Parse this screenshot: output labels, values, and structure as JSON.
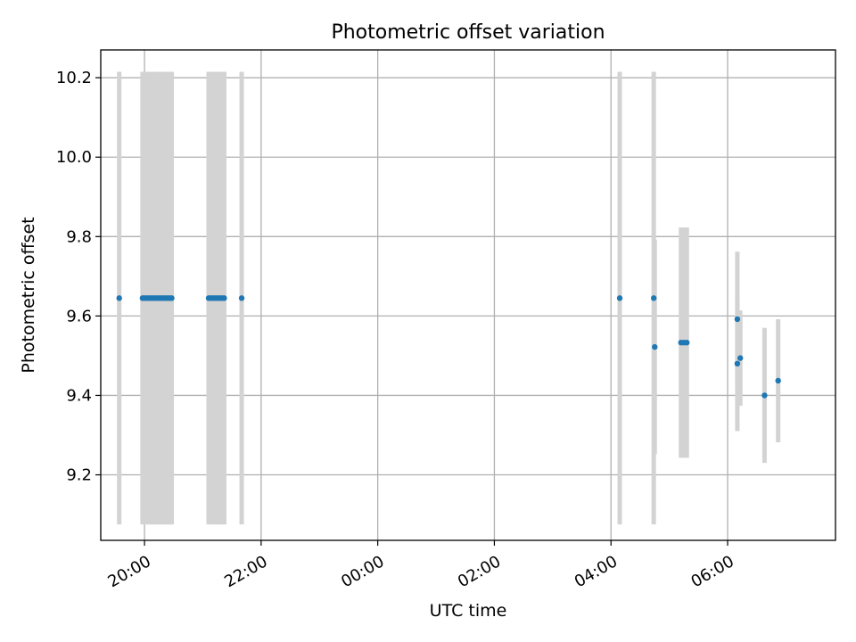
{
  "chart_data": {
    "type": "scatter",
    "title": "Photometric offset variation",
    "xlabel": "UTC time",
    "ylabel": "Photometric offset",
    "x_start": "19:00",
    "x_end": "07:40",
    "xlim": [
      "19:15",
      "07:51"
    ],
    "ylim": [
      9.035,
      10.27
    ],
    "x_ticks": [
      "20:00",
      "22:00",
      "00:00",
      "02:00",
      "04:00",
      "06:00"
    ],
    "y_ticks": [
      9.2,
      9.4,
      9.6,
      9.8,
      10.0,
      10.2
    ],
    "y_tick_labels": [
      "9.2",
      "9.4",
      "9.6",
      "9.8",
      "10.0",
      "10.2"
    ],
    "grid": true,
    "marker_color": "#1f77b4",
    "errorbar_color": "#d3d3d3",
    "points": [
      {
        "x": "19:34",
        "y": 9.645,
        "err": 0.57
      },
      {
        "x": "19:58",
        "y": 9.645,
        "err": 0.57
      },
      {
        "x": "20:00",
        "y": 9.645,
        "err": 0.57
      },
      {
        "x": "20:02",
        "y": 9.645,
        "err": 0.57
      },
      {
        "x": "20:04",
        "y": 9.645,
        "err": 0.57
      },
      {
        "x": "20:06",
        "y": 9.645,
        "err": 0.57
      },
      {
        "x": "20:08",
        "y": 9.645,
        "err": 0.57
      },
      {
        "x": "20:10",
        "y": 9.645,
        "err": 0.57
      },
      {
        "x": "20:12",
        "y": 9.645,
        "err": 0.57
      },
      {
        "x": "20:14",
        "y": 9.645,
        "err": 0.57
      },
      {
        "x": "20:16",
        "y": 9.645,
        "err": 0.57
      },
      {
        "x": "20:18",
        "y": 9.645,
        "err": 0.57
      },
      {
        "x": "20:20",
        "y": 9.645,
        "err": 0.57
      },
      {
        "x": "20:22",
        "y": 9.645,
        "err": 0.57
      },
      {
        "x": "20:24",
        "y": 9.645,
        "err": 0.57
      },
      {
        "x": "20:26",
        "y": 9.645,
        "err": 0.57
      },
      {
        "x": "20:28",
        "y": 9.645,
        "err": 0.57
      },
      {
        "x": "21:06",
        "y": 9.645,
        "err": 0.57
      },
      {
        "x": "21:08",
        "y": 9.645,
        "err": 0.57
      },
      {
        "x": "21:10",
        "y": 9.645,
        "err": 0.57
      },
      {
        "x": "21:12",
        "y": 9.645,
        "err": 0.57
      },
      {
        "x": "21:14",
        "y": 9.645,
        "err": 0.57
      },
      {
        "x": "21:16",
        "y": 9.645,
        "err": 0.57
      },
      {
        "x": "21:18",
        "y": 9.645,
        "err": 0.57
      },
      {
        "x": "21:20",
        "y": 9.645,
        "err": 0.57
      },
      {
        "x": "21:22",
        "y": 9.645,
        "err": 0.57
      },
      {
        "x": "21:40",
        "y": 9.645,
        "err": 0.57
      },
      {
        "x": "04:09",
        "y": 9.645,
        "err": 0.57
      },
      {
        "x": "04:44",
        "y": 9.645,
        "err": 0.57
      },
      {
        "x": "04:45",
        "y": 9.522,
        "err": 0.27
      },
      {
        "x": "05:12",
        "y": 9.533,
        "err": 0.29
      },
      {
        "x": "05:15",
        "y": 9.533,
        "err": 0.29
      },
      {
        "x": "05:18",
        "y": 9.533,
        "err": 0.29
      },
      {
        "x": "06:10",
        "y": 9.592,
        "err": 0.17
      },
      {
        "x": "06:10",
        "y": 9.48,
        "err": 0.17
      },
      {
        "x": "06:13",
        "y": 9.494,
        "err": 0.12
      },
      {
        "x": "06:38",
        "y": 9.4,
        "err": 0.17
      },
      {
        "x": "06:52",
        "y": 9.437,
        "err": 0.155
      }
    ]
  }
}
